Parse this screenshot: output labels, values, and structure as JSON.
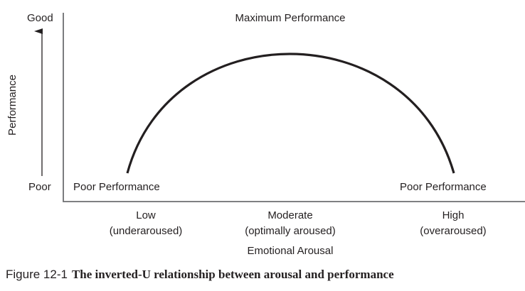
{
  "y_axis": {
    "label": "Performance",
    "top": "Good",
    "bottom": "Poor"
  },
  "x_axis": {
    "label": "Emotional Arousal",
    "ticks": [
      {
        "level": "Low",
        "desc": "(underaroused)"
      },
      {
        "level": "Moderate",
        "desc": "(optimally aroused)"
      },
      {
        "level": "High",
        "desc": "(overaroused)"
      }
    ]
  },
  "annotations": {
    "peak": "Maximum Performance",
    "left": "Poor Performance",
    "right": "Poor Performance"
  },
  "caption": {
    "number": "Figure 12-1",
    "title": "The inverted-U relationship between arousal and performance"
  }
}
